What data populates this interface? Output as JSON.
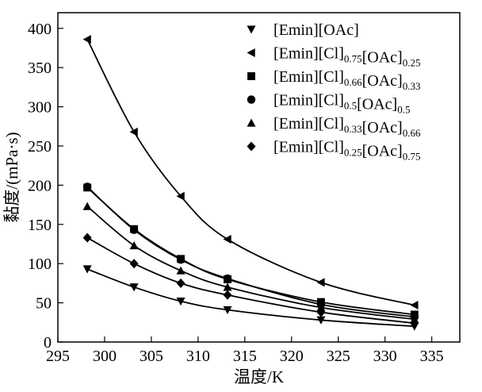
{
  "chart_data": {
    "type": "scatter",
    "xlabel": "温度/K",
    "ylabel": "黏度/(mPa·s)",
    "xlim": [
      295,
      338
    ],
    "ylim": [
      0,
      420
    ],
    "xticks": [
      295,
      300,
      305,
      310,
      315,
      320,
      325,
      330,
      335
    ],
    "yticks": [
      0,
      50,
      100,
      150,
      200,
      250,
      300,
      350,
      400
    ],
    "grid": false,
    "legend_position": "top-right",
    "x": [
      298.15,
      303.15,
      308.15,
      313.15,
      323.15,
      333.15
    ],
    "series": [
      {
        "name": "[Emin][OAc]",
        "legend_parts": [
          [
            "[Emin][OAc]",
            ""
          ]
        ],
        "marker": "triangle-down",
        "values": [
          93,
          70,
          52,
          41,
          28,
          20
        ]
      },
      {
        "name": "[Emin][Cl]0.75[OAc]0.25",
        "legend_parts": [
          [
            "[Emin][Cl]",
            "0.75"
          ],
          [
            "[OAc]",
            "0.25"
          ]
        ],
        "marker": "triangle-left",
        "values": [
          386,
          268,
          186,
          131,
          76,
          47
        ]
      },
      {
        "name": "[Emin][Cl]0.66[OAc]0.33",
        "legend_parts": [
          [
            "[Emin][Cl]",
            "0.66"
          ],
          [
            "[OAc]",
            "0.33"
          ]
        ],
        "marker": "square",
        "values": [
          197,
          144,
          106,
          80,
          51,
          35
        ]
      },
      {
        "name": "[Emin][Cl]0.5[OAc]0.5",
        "legend_parts": [
          [
            "[Emin][Cl]",
            "0.5"
          ],
          [
            "[OAc]",
            "0.5"
          ]
        ],
        "marker": "circle",
        "values": [
          198,
          143,
          105,
          81,
          48,
          32
        ]
      },
      {
        "name": "[Emin][Cl]0.33[OAc]0.66",
        "legend_parts": [
          [
            "[Emin][Cl]",
            "0.33"
          ],
          [
            "[OAc]",
            "0.66"
          ]
        ],
        "marker": "triangle-up",
        "values": [
          173,
          123,
          91,
          70,
          44,
          29
        ]
      },
      {
        "name": "[Emin][Cl]0.25[OAc]0.75",
        "legend_parts": [
          [
            "[Emin][Cl]",
            "0.25"
          ],
          [
            "[OAc]",
            "0.75"
          ]
        ],
        "marker": "diamond",
        "values": [
          133,
          100,
          75,
          60,
          38,
          24
        ]
      }
    ]
  }
}
